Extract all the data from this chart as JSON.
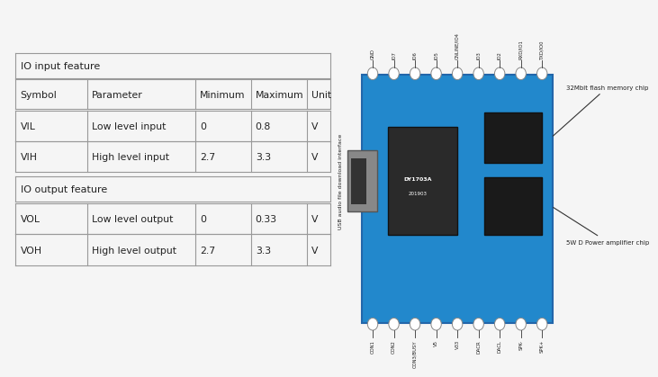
{
  "bg_color": "#f5f5f5",
  "table": {
    "section1_title": "IO input feature",
    "section2_title": "IO output feature",
    "headers": [
      "Symbol",
      "Parameter",
      "Minimum",
      "Maximum",
      "Unit"
    ],
    "input_rows": [
      [
        "VIL",
        "Low level input",
        "0",
        "0.8",
        "V"
      ],
      [
        "VIH",
        "High level input",
        "2.7",
        "3.3",
        "V"
      ]
    ],
    "output_rows": [
      [
        "VOL",
        "Low level output",
        "0",
        "0.33",
        "V"
      ],
      [
        "VOH",
        "High level output",
        "2.7",
        "3.3",
        "V"
      ]
    ]
  },
  "board": {
    "top_labels": [
      "GND",
      "IO7",
      "IO6",
      "IO5",
      "ONLINE/IO4",
      "IO3",
      "IO2",
      "RXD/IO1",
      "TXD/IO0"
    ],
    "bottom_labels": [
      "CON1",
      "CON2",
      "CON3/BUSY",
      "V5",
      "V33",
      "DACR",
      "DACL",
      "SPK-",
      "SPK+"
    ],
    "right_label_1": "32Mbit flash memory chip",
    "right_label_2": "5W D Power amplifier chip",
    "left_label": "USB audio file download interface"
  },
  "pcb_color": "#2288cc",
  "pcb_edge_color": "#2266aa",
  "chip_color": "#2a2a2a",
  "line_color": "#333333",
  "text_color": "#222222",
  "table_border_color": "#999999"
}
